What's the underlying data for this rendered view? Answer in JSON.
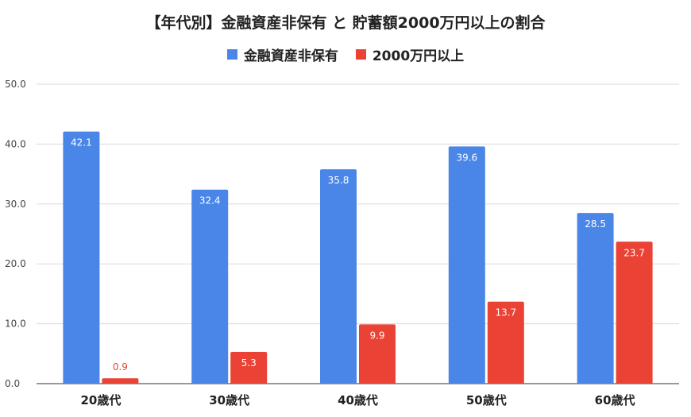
{
  "chart_data": {
    "type": "bar",
    "title": "【年代別】金融資産非保有 と 貯蓄額2000万円以上の割合",
    "categories": [
      "20歳代",
      "30歳代",
      "40歳代",
      "50歳代",
      "60歳代"
    ],
    "series": [
      {
        "name": "金融資産非保有",
        "color": "#4A86E8",
        "values": [
          42.1,
          32.4,
          35.8,
          39.6,
          28.5
        ],
        "labels": [
          "42.1",
          "32.4",
          "35.8",
          "39.6",
          "28.5"
        ]
      },
      {
        "name": "2000万円以上",
        "color": "#EA4335",
        "values": [
          0.9,
          5.3,
          9.9,
          13.7,
          23.7
        ],
        "labels": [
          "0.9",
          "5.3",
          "9.9",
          "13.7",
          "23.7"
        ]
      }
    ],
    "y_ticks": [
      "0.0",
      "10.0",
      "20.0",
      "30.0",
      "40.0",
      "50.0"
    ],
    "ylim": [
      0,
      50
    ],
    "grid": true,
    "legend_position": "top"
  }
}
